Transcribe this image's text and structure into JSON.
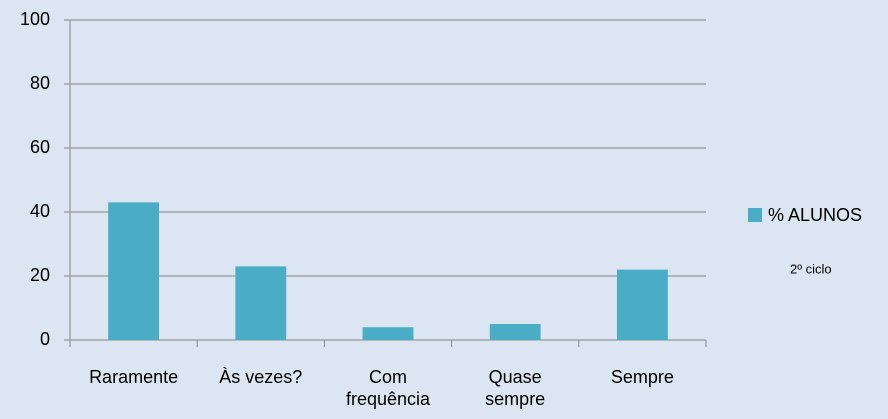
{
  "chart_data": {
    "type": "bar",
    "categories": [
      "Raramente",
      "Às vezes?",
      "Com\nfrequência",
      "Quase\nsempre",
      "Sempre"
    ],
    "series": [
      {
        "name": "% ALUNOS",
        "color": "#4bacc6",
        "values": [
          43,
          23,
          4,
          5,
          22
        ]
      }
    ],
    "annotation": "2º ciclo",
    "ylim": [
      0,
      100
    ],
    "yticks": [
      0,
      20,
      40,
      60,
      80,
      100
    ],
    "grid": true,
    "legend": "right"
  }
}
